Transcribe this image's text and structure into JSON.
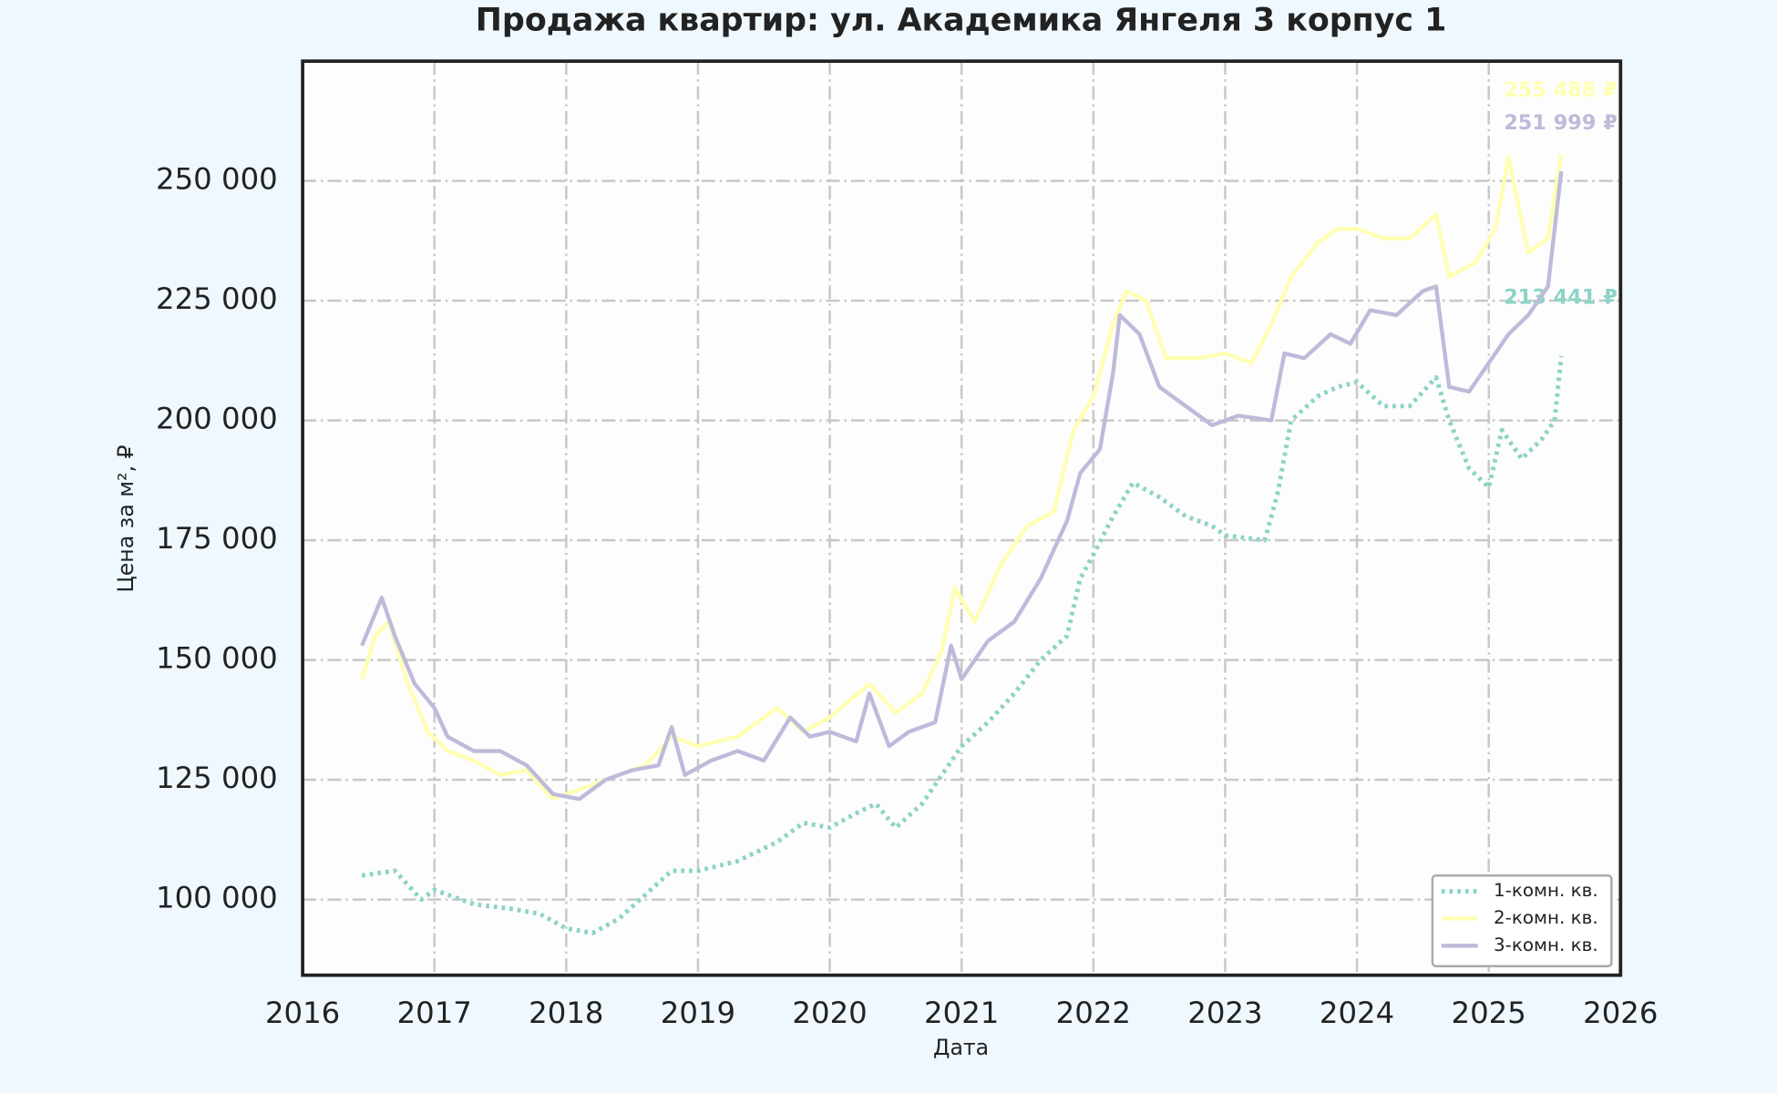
{
  "chart_data": {
    "type": "line",
    "title": "Продажа квартир: ул. Академика Янгеля 3 корпус 1",
    "x_label": "Дата",
    "y_label": "Цена за м², ₽",
    "xlim": [
      2016,
      2026
    ],
    "xticks": [
      2016,
      2017,
      2018,
      2019,
      2020,
      2021,
      2022,
      2023,
      2024,
      2025,
      2026
    ],
    "ylim": [
      84200,
      275000
    ],
    "yticks": [
      {
        "value": 100000,
        "label": "100 000"
      },
      {
        "value": 125000,
        "label": "125 000"
      },
      {
        "value": 150000,
        "label": "150 000"
      },
      {
        "value": 175000,
        "label": "175 000"
      },
      {
        "value": 200000,
        "label": "200 000"
      },
      {
        "value": 225000,
        "label": "225 000"
      },
      {
        "value": 250000,
        "label": "250 000"
      }
    ],
    "grid": true,
    "legend": "lower right",
    "series": [
      {
        "name": "1-комн. кв.",
        "color": "#8dd3c7",
        "linestyle": "dotted",
        "end_label": "213 441 ₽",
        "x": [
          2016.45,
          2016.7,
          2016.9,
          2017.0,
          2017.3,
          2017.6,
          2017.8,
          2018.0,
          2018.2,
          2018.4,
          2018.6,
          2018.8,
          2019.0,
          2019.3,
          2019.6,
          2019.8,
          2020.0,
          2020.2,
          2020.35,
          2020.5,
          2020.7,
          2020.85,
          2021.0,
          2021.2,
          2021.4,
          2021.6,
          2021.8,
          2021.9,
          2022.0,
          2022.15,
          2022.3,
          2022.5,
          2022.7,
          2022.9,
          2023.0,
          2023.3,
          2023.4,
          2023.5,
          2023.7,
          2023.85,
          2024.0,
          2024.2,
          2024.4,
          2024.6,
          2024.7,
          2024.85,
          2025.0,
          2025.1,
          2025.25,
          2025.4,
          2025.5,
          2025.55
        ],
        "values": [
          105000,
          106000,
          100000,
          102000,
          99000,
          98000,
          97000,
          94000,
          93000,
          96000,
          101000,
          106000,
          106000,
          108000,
          112000,
          116000,
          115000,
          118000,
          120000,
          115000,
          120000,
          126000,
          132000,
          137000,
          143000,
          150000,
          155000,
          167000,
          172000,
          180000,
          187000,
          184000,
          180000,
          178000,
          176000,
          175000,
          185000,
          200000,
          205000,
          207000,
          208000,
          203000,
          203000,
          209000,
          200000,
          190000,
          186000,
          198000,
          192000,
          196000,
          200000,
          213441
        ]
      },
      {
        "name": "2-комн. кв.",
        "color": "#ffffb3",
        "linestyle": "solid",
        "end_label": "255 488 ₽",
        "x": [
          2016.45,
          2016.55,
          2016.65,
          2016.8,
          2016.95,
          2017.1,
          2017.3,
          2017.5,
          2017.7,
          2017.9,
          2018.0,
          2018.2,
          2018.4,
          2018.6,
          2018.8,
          2019.0,
          2019.3,
          2019.6,
          2019.8,
          2020.0,
          2020.3,
          2020.5,
          2020.7,
          2020.85,
          2020.95,
          2021.1,
          2021.3,
          2021.5,
          2021.7,
          2021.85,
          2022.0,
          2022.15,
          2022.25,
          2022.4,
          2022.55,
          2022.8,
          2023.0,
          2023.2,
          2023.35,
          2023.5,
          2023.7,
          2023.85,
          2024.0,
          2024.2,
          2024.4,
          2024.6,
          2024.7,
          2024.9,
          2025.05,
          2025.15,
          2025.3,
          2025.45,
          2025.55
        ],
        "values": [
          146000,
          155000,
          158000,
          145000,
          135000,
          131000,
          129000,
          126000,
          127000,
          121000,
          122000,
          124000,
          126000,
          128000,
          134000,
          132000,
          134000,
          140000,
          135000,
          138000,
          145000,
          139000,
          143000,
          152000,
          165000,
          158000,
          170000,
          178000,
          181000,
          198000,
          205000,
          220000,
          227000,
          225000,
          213000,
          213000,
          214000,
          212000,
          220000,
          230000,
          237000,
          240000,
          240000,
          238000,
          238000,
          243000,
          230000,
          233000,
          240000,
          255000,
          235000,
          238000,
          255488
        ]
      },
      {
        "name": "3-комн. кв.",
        "color": "#bebada",
        "linestyle": "solid",
        "end_label": "251 999 ₽",
        "x": [
          2016.45,
          2016.6,
          2016.7,
          2016.85,
          2017.0,
          2017.1,
          2017.3,
          2017.5,
          2017.7,
          2017.9,
          2018.1,
          2018.3,
          2018.5,
          2018.7,
          2018.8,
          2018.9,
          2019.1,
          2019.3,
          2019.5,
          2019.7,
          2019.85,
          2020.0,
          2020.2,
          2020.3,
          2020.45,
          2020.6,
          2020.8,
          2020.92,
          2021.0,
          2021.2,
          2021.4,
          2021.6,
          2021.8,
          2021.9,
          2022.05,
          2022.15,
          2022.2,
          2022.35,
          2022.5,
          2022.7,
          2022.9,
          2023.1,
          2023.35,
          2023.45,
          2023.6,
          2023.8,
          2023.95,
          2024.1,
          2024.3,
          2024.5,
          2024.6,
          2024.7,
          2024.85,
          2025.0,
          2025.15,
          2025.3,
          2025.45,
          2025.55
        ],
        "values": [
          153000,
          163000,
          155000,
          145000,
          140000,
          134000,
          131000,
          131000,
          128000,
          122000,
          121000,
          125000,
          127000,
          128000,
          136000,
          126000,
          129000,
          131000,
          129000,
          138000,
          134000,
          135000,
          133000,
          143000,
          132000,
          135000,
          137000,
          153000,
          146000,
          154000,
          158000,
          167000,
          179000,
          189000,
          194000,
          210000,
          222000,
          218000,
          207000,
          203000,
          199000,
          201000,
          200000,
          214000,
          213000,
          218000,
          216000,
          223000,
          222000,
          227000,
          228000,
          207000,
          206000,
          212000,
          218000,
          222000,
          228000,
          251999
        ]
      }
    ]
  }
}
